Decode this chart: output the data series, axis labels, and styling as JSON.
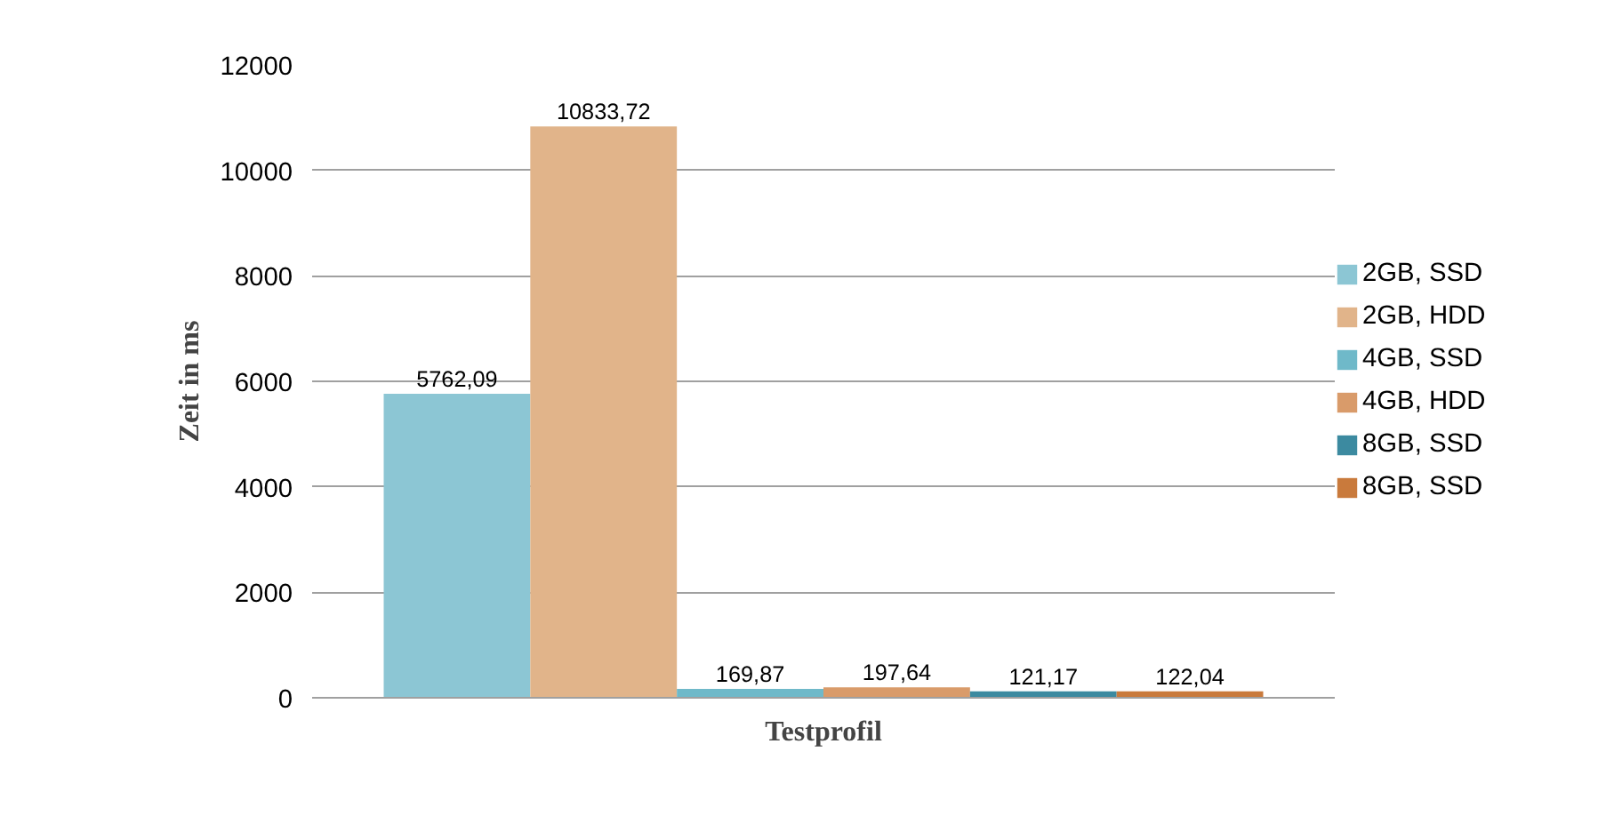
{
  "chart_data": {
    "type": "bar",
    "xlabel": "Testprofil",
    "ylabel": "Zeit in ms",
    "categories": [
      null
    ],
    "ylim": [
      0,
      12000
    ],
    "yticks": [
      0,
      2000,
      4000,
      6000,
      8000,
      10000,
      12000
    ],
    "grid": "y",
    "legend": "right",
    "series": [
      {
        "name": "2GB, SSD",
        "color": "#8cc6d4",
        "values": [
          5762.09
        ],
        "value_labels": [
          "5762,09"
        ]
      },
      {
        "name": "2GB, HDD",
        "color": "#e1b48a",
        "values": [
          10833.72
        ],
        "value_labels": [
          "10833,72"
        ]
      },
      {
        "name": "4GB, SSD",
        "color": "#6fb9c9",
        "values": [
          169.87
        ],
        "value_labels": [
          "169,87"
        ]
      },
      {
        "name": "4GB, HDD",
        "color": "#d99b6a",
        "values": [
          197.64
        ],
        "value_labels": [
          "197,64"
        ]
      },
      {
        "name": "8GB, SSD",
        "color": "#3c8aa0",
        "values": [
          121.17
        ],
        "value_labels": [
          "121,17"
        ]
      },
      {
        "name": "8GB, SSD",
        "color": "#c97a3c",
        "values": [
          122.04
        ],
        "value_labels": [
          "122,04"
        ]
      }
    ]
  }
}
